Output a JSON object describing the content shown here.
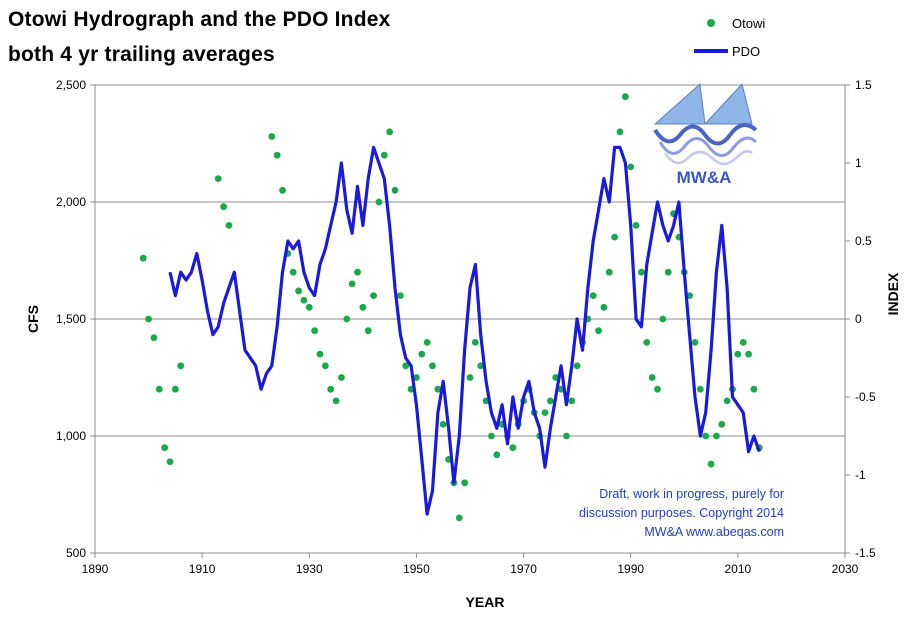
{
  "chart_data": {
    "type": "scatter+line",
    "title_line1": "Otowi Hydrograph  and the PDO Index",
    "title_line2": "both 4 yr trailing  averages",
    "xlabel": "YEAR",
    "ylabel_left": "CFS",
    "ylabel_right": "INDEX",
    "xlim": [
      1890,
      2030
    ],
    "x_ticks": [
      "1890",
      "1910",
      "1930",
      "1950",
      "1970",
      "1990",
      "2010",
      "2030"
    ],
    "ylim_left": [
      500,
      2500
    ],
    "y_left_ticks": [
      "500",
      "1,000",
      "1,500",
      "2,000",
      "2,500"
    ],
    "ylim_right": [
      -1.5,
      1.5
    ],
    "y_right_ticks": [
      "-1.5",
      "-1",
      "-0.5",
      "0",
      "0.5",
      "1",
      "1.5"
    ],
    "grid": "horizontal",
    "legend_position": "top-right",
    "colors": {
      "otowi": "#1aa84c",
      "pdo": "#1a1adc",
      "note": "#1f3ec8"
    },
    "series": [
      {
        "name": "Otowi",
        "axis": "left",
        "style": "points",
        "x": [
          1899,
          1900,
          1901,
          1902,
          1903,
          1904,
          1905,
          1906,
          1913,
          1914,
          1915,
          1923,
          1924,
          1925,
          1926,
          1927,
          1928,
          1929,
          1930,
          1931,
          1932,
          1933,
          1934,
          1935,
          1936,
          1937,
          1938,
          1939,
          1940,
          1941,
          1942,
          1943,
          1944,
          1945,
          1946,
          1947,
          1948,
          1949,
          1950,
          1951,
          1952,
          1953,
          1954,
          1955,
          1956,
          1957,
          1958,
          1959,
          1960,
          1961,
          1962,
          1963,
          1964,
          1965,
          1966,
          1967,
          1968,
          1969,
          1970,
          1971,
          1972,
          1973,
          1974,
          1975,
          1976,
          1977,
          1978,
          1979,
          1980,
          1981,
          1982,
          1983,
          1984,
          1985,
          1986,
          1987,
          1988,
          1989,
          1990,
          1991,
          1992,
          1993,
          1994,
          1995,
          1996,
          1997,
          1998,
          1999,
          2000,
          2001,
          2002,
          2003,
          2004,
          2005,
          2006,
          2007,
          2008,
          2009,
          2010,
          2011,
          2012,
          2013,
          2014
        ],
        "values": [
          1760,
          1500,
          1420,
          1200,
          950,
          890,
          1200,
          1300,
          2100,
          1980,
          1900,
          2280,
          2200,
          2050,
          1780,
          1700,
          1620,
          1580,
          1550,
          1450,
          1350,
          1300,
          1200,
          1150,
          1250,
          1500,
          1650,
          1700,
          1550,
          1450,
          1600,
          2000,
          2200,
          2300,
          2050,
          1600,
          1300,
          1200,
          1250,
          1350,
          1400,
          1300,
          1200,
          1050,
          900,
          800,
          650,
          800,
          1250,
          1400,
          1300,
          1150,
          1000,
          920,
          1050,
          1000,
          950,
          1050,
          1150,
          1200,
          1100,
          1000,
          1100,
          1150,
          1250,
          1200,
          1000,
          1150,
          1300,
          1400,
          1500,
          1600,
          1450,
          1550,
          1700,
          1850,
          2300,
          2450,
          2150,
          1900,
          1700,
          1400,
          1250,
          1200,
          1500,
          1700,
          1950,
          1850,
          1700,
          1600,
          1400,
          1200,
          1000,
          880,
          1000,
          1050,
          1150,
          1200,
          1350,
          1400,
          1350,
          1200,
          950
        ]
      },
      {
        "name": "PDO",
        "axis": "right",
        "style": "line",
        "x": [
          1904,
          1905,
          1906,
          1907,
          1908,
          1909,
          1910,
          1911,
          1912,
          1913,
          1914,
          1915,
          1916,
          1917,
          1918,
          1919,
          1920,
          1921,
          1922,
          1923,
          1924,
          1925,
          1926,
          1927,
          1928,
          1929,
          1930,
          1931,
          1932,
          1933,
          1934,
          1935,
          1936,
          1937,
          1938,
          1939,
          1940,
          1941,
          1942,
          1943,
          1944,
          1945,
          1946,
          1947,
          1948,
          1949,
          1950,
          1951,
          1952,
          1953,
          1954,
          1955,
          1956,
          1957,
          1958,
          1959,
          1960,
          1961,
          1962,
          1963,
          1964,
          1965,
          1966,
          1967,
          1968,
          1969,
          1970,
          1971,
          1972,
          1973,
          1974,
          1975,
          1976,
          1977,
          1978,
          1979,
          1980,
          1981,
          1982,
          1983,
          1984,
          1985,
          1986,
          1987,
          1988,
          1989,
          1990,
          1991,
          1992,
          1993,
          1994,
          1995,
          1996,
          1997,
          1998,
          1999,
          2000,
          2001,
          2002,
          2003,
          2004,
          2005,
          2006,
          2007,
          2008,
          2009,
          2010,
          2011,
          2012,
          2013,
          2014
        ],
        "values": [
          0.3,
          0.15,
          0.3,
          0.25,
          0.3,
          0.42,
          0.25,
          0.05,
          -0.1,
          -0.05,
          0.1,
          0.2,
          0.3,
          0.05,
          -0.2,
          -0.25,
          -0.3,
          -0.45,
          -0.35,
          -0.3,
          -0.05,
          0.3,
          0.5,
          0.45,
          0.5,
          0.3,
          0.2,
          0.15,
          0.35,
          0.45,
          0.6,
          0.75,
          1.0,
          0.7,
          0.55,
          0.85,
          0.6,
          0.9,
          1.1,
          1.0,
          0.9,
          0.6,
          0.2,
          -0.1,
          -0.25,
          -0.3,
          -0.55,
          -0.9,
          -1.25,
          -1.1,
          -0.6,
          -0.4,
          -0.7,
          -1.05,
          -0.75,
          -0.2,
          0.2,
          0.35,
          -0.1,
          -0.4,
          -0.6,
          -0.7,
          -0.55,
          -0.8,
          -0.5,
          -0.7,
          -0.5,
          -0.4,
          -0.6,
          -0.7,
          -0.95,
          -0.7,
          -0.5,
          -0.3,
          -0.55,
          -0.3,
          0.0,
          -0.2,
          0.2,
          0.5,
          0.7,
          0.9,
          0.75,
          1.1,
          1.1,
          1.0,
          0.6,
          0.0,
          -0.05,
          0.35,
          0.55,
          0.75,
          0.6,
          0.5,
          0.6,
          0.75,
          0.3,
          -0.1,
          -0.5,
          -0.75,
          -0.6,
          -0.2,
          0.3,
          0.6,
          0.2,
          -0.5,
          -0.55,
          -0.6,
          -0.85,
          -0.75,
          -0.85
        ]
      }
    ],
    "logo_text": "MW&A",
    "annotation": [
      "Draft, work in progress, purely for",
      "discussion purposes.  Copyright  2014",
      "MW&A     www.abeqas.com"
    ]
  }
}
